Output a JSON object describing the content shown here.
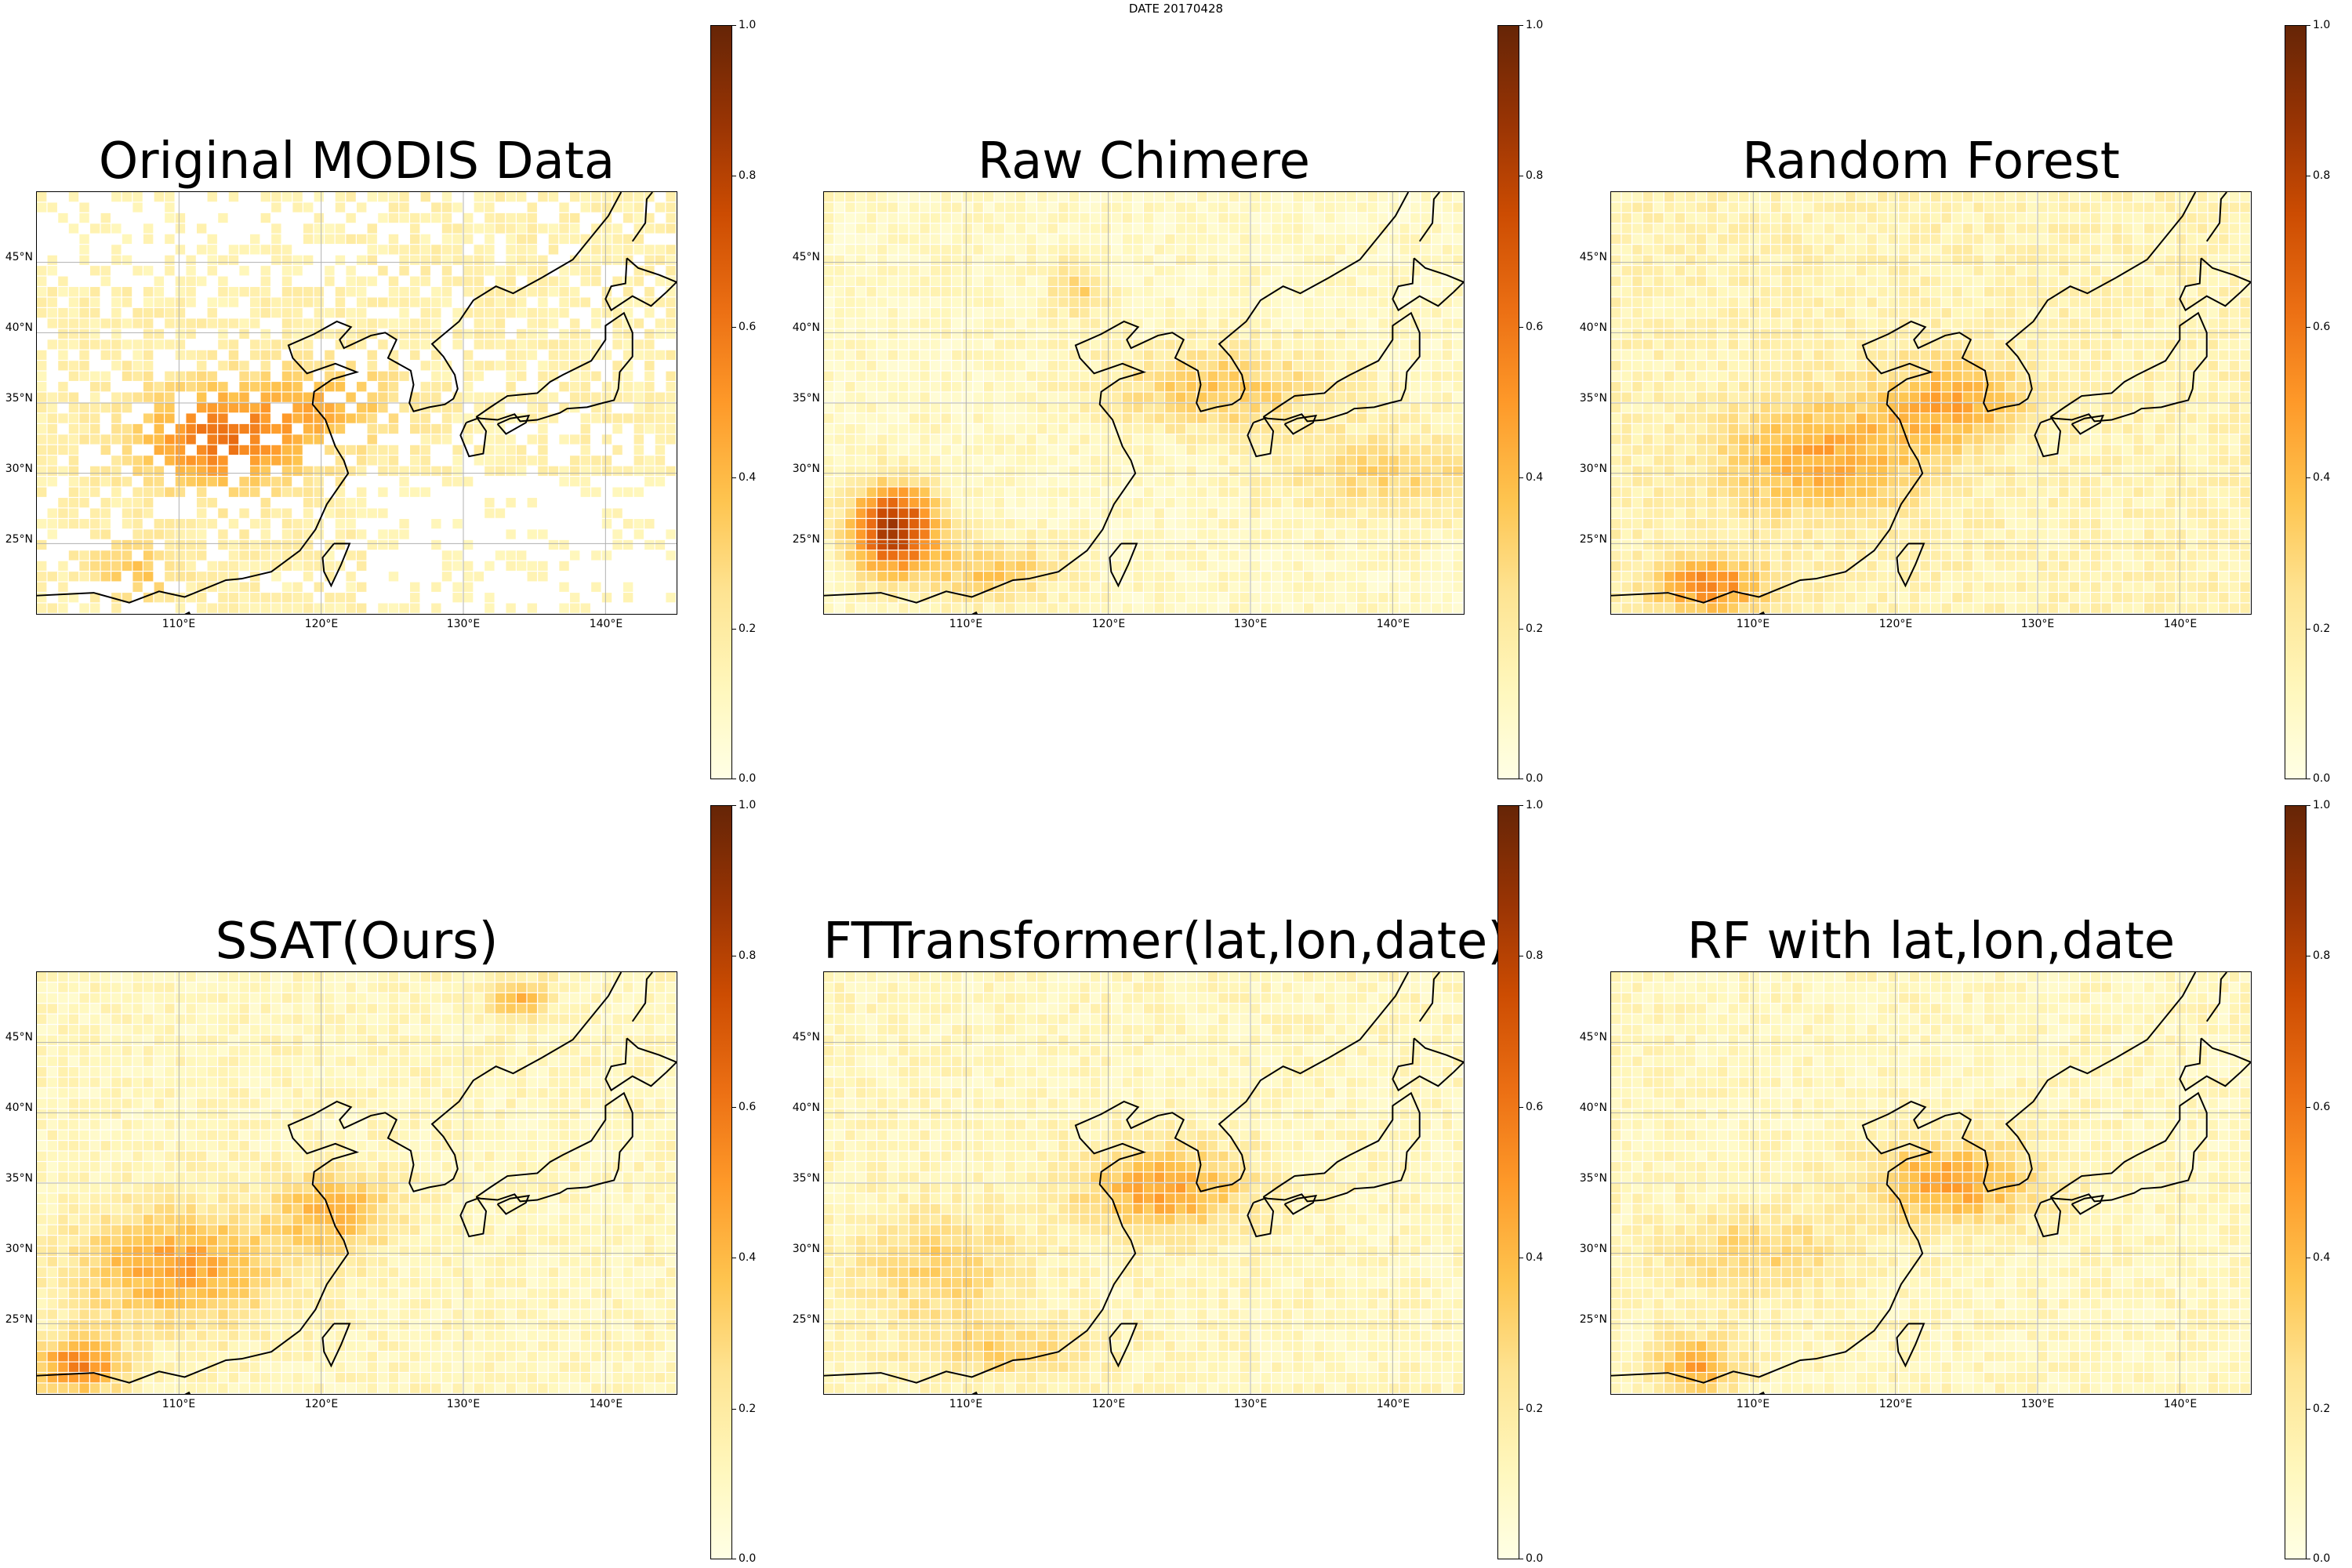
{
  "figure": {
    "suptitle": "DATE 20170428"
  },
  "panels": [
    {
      "id": "modis",
      "title": "Original MODIS Data"
    },
    {
      "id": "chimere",
      "title": "Raw Chimere"
    },
    {
      "id": "rf",
      "title": "Random Forest"
    },
    {
      "id": "ssat",
      "title": "SSAT(Ours)"
    },
    {
      "id": "ftt",
      "title": "FTTransformer(lat,lon,date)"
    },
    {
      "id": "rflld",
      "title": "RF with lat,lon,date"
    }
  ],
  "axes": {
    "lon_range": [
      100,
      145
    ],
    "lat_range": [
      20,
      50
    ],
    "xticks": [
      "110°E",
      "120°E",
      "130°E",
      "140°E"
    ],
    "yticks": [
      "45°N",
      "40°N",
      "35°N",
      "30°N",
      "25°N"
    ]
  },
  "colorbar": {
    "colormap": "YlOrBr",
    "range": [
      0.0,
      1.0
    ],
    "ticks": [
      "1.0",
      "0.8",
      "0.6",
      "0.4",
      "0.2",
      "0.0"
    ]
  }
}
